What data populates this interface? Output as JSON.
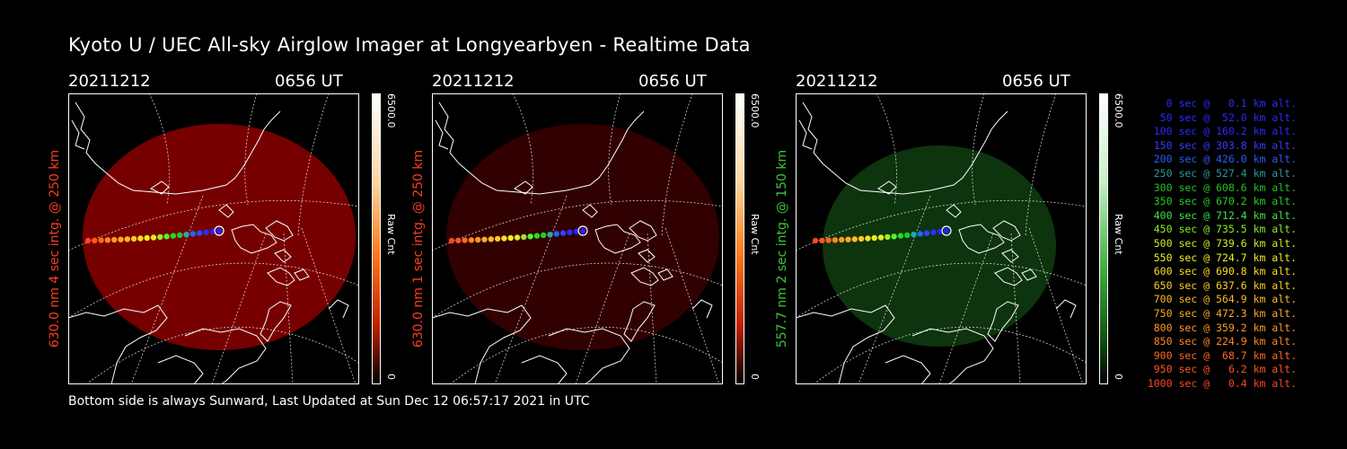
{
  "title": "Kyoto U / UEC All-sky Airglow Imager at Longyearbyen - Realtime Data",
  "footer": "Bottom side is always Sunward, Last Updated at Sun Dec 12 06:57:17 2021 in UTC",
  "panels": [
    {
      "date": "20211212",
      "time": "0656 UT",
      "ylabel": "630.0 nm 4 sec intg. @ 250 km",
      "ylabel_color": "#ff3b1f",
      "cbar_max": "6500.0",
      "cbar_min": "0",
      "cbar_unit": "Raw Cnt",
      "airglow_color": "#8b0000",
      "airglow_opacity": 0.85,
      "cbar_gradient": "linear-gradient(to bottom,#ffffff 0%,#ffd6a0 30%,#ff7a1a 55%,#c02000 80%,#000000 100%)"
    },
    {
      "date": "20211212",
      "time": "0656 UT",
      "ylabel": "630.0 nm 1 sec intg. @ 250 km",
      "ylabel_color": "#ff3b1f",
      "cbar_max": "6500.0",
      "cbar_min": "0",
      "cbar_unit": "Raw Cnt",
      "airglow_color": "#3a0000",
      "airglow_opacity": 0.85,
      "cbar_gradient": "linear-gradient(to bottom,#ffffff 0%,#ffd6a0 30%,#ff7a1a 55%,#c02000 80%,#000000 100%)"
    },
    {
      "date": "20211212",
      "time": "0656 UT",
      "ylabel": "557.7 nm 2 sec intg. @ 150 km",
      "ylabel_color": "#3ac63a",
      "cbar_max": "6500.0",
      "cbar_min": "0",
      "cbar_unit": "Raw Cnt",
      "airglow_color": "#0e3a0e",
      "airglow_opacity": 0.9,
      "cbar_gradient": "linear-gradient(to bottom,#ffffff 0%,#c8f0c8 30%,#40b040 60%,#105010 85%,#000000 100%)"
    }
  ],
  "legend": [
    {
      "text": "0 sec @   0.1 km alt.",
      "color": "#2a2aff"
    },
    {
      "text": "50 sec @  52.0 km alt.",
      "color": "#2a2aff"
    },
    {
      "text": "100 sec @ 160.2 km alt.",
      "color": "#2a2aff"
    },
    {
      "text": "150 sec @ 303.8 km alt.",
      "color": "#3a3aff"
    },
    {
      "text": "200 sec @ 426.0 km alt.",
      "color": "#2a5aff"
    },
    {
      "text": "250 sec @ 527.4 km alt.",
      "color": "#2a9a9a"
    },
    {
      "text": "300 sec @ 608.6 km alt.",
      "color": "#22c022"
    },
    {
      "text": "350 sec @ 670.2 km alt.",
      "color": "#22d022"
    },
    {
      "text": "400 sec @ 712.4 km alt.",
      "color": "#44e044"
    },
    {
      "text": "450 sec @ 735.5 km alt.",
      "color": "#88ee22"
    },
    {
      "text": "500 sec @ 739.6 km alt.",
      "color": "#ccee22"
    },
    {
      "text": "550 sec @ 724.7 km alt.",
      "color": "#eeee22"
    },
    {
      "text": "600 sec @ 690.8 km alt.",
      "color": "#ffdd22"
    },
    {
      "text": "650 sec @ 637.6 km alt.",
      "color": "#ffcc22"
    },
    {
      "text": "700 sec @ 564.9 km alt.",
      "color": "#ffbb22"
    },
    {
      "text": "750 sec @ 472.3 km alt.",
      "color": "#ffaa22"
    },
    {
      "text": "800 sec @ 359.2 km alt.",
      "color": "#ff9922"
    },
    {
      "text": "850 sec @ 224.9 km alt.",
      "color": "#ff8822"
    },
    {
      "text": "900 sec @  68.7 km alt.",
      "color": "#ff6622"
    },
    {
      "text": "950 sec @   6.2 km alt.",
      "color": "#ff5522"
    },
    {
      "text": "1000 sec @   0.4 km alt.",
      "color": "#ff4422"
    }
  ],
  "trajectory_colors": [
    "#2222ff",
    "#2222ff",
    "#2233ff",
    "#3344ff",
    "#2266ff",
    "#22aaaa",
    "#22cc22",
    "#22dd22",
    "#55ee33",
    "#99ee22",
    "#ddee22",
    "#eeee22",
    "#ffdd22",
    "#ffcc22",
    "#ffbb22",
    "#ffaa22",
    "#ff9922",
    "#ff8822",
    "#ff6622",
    "#ff5522",
    "#ff4422"
  ]
}
